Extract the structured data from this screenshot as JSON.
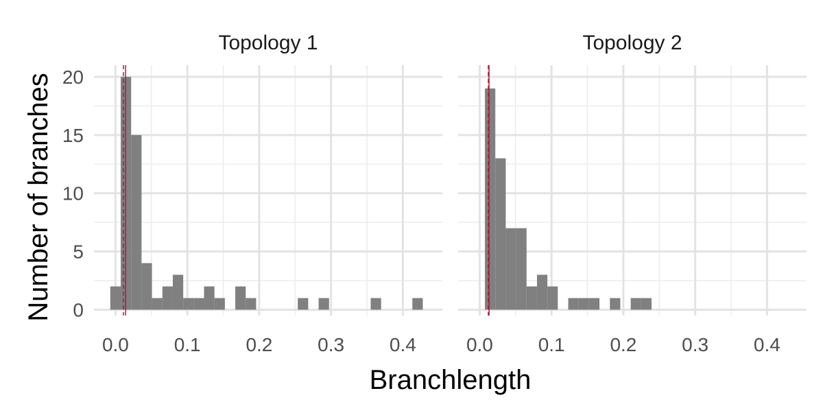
{
  "chart_data": {
    "type": "bar",
    "xlabel": "Branchlength",
    "ylabel": "Number of branches",
    "xlim": [
      -0.03,
      0.455
    ],
    "ylim": [
      -0.5,
      21
    ],
    "x_ticks": [
      "0.0",
      "0.1",
      "0.2",
      "0.3",
      "0.4"
    ],
    "x_tick_values": [
      0.0,
      0.1,
      0.2,
      0.3,
      0.4
    ],
    "y_ticks": [
      "0",
      "5",
      "10",
      "15",
      "20"
    ],
    "y_tick_values": [
      0,
      5,
      10,
      15,
      20
    ],
    "bin_width": 0.0145,
    "bar_color": "#808080",
    "reference_line_color": "#b0173d",
    "grid": true,
    "panels": [
      {
        "title": "Topology 1",
        "bin_centers": [
          0.0,
          0.0145,
          0.029,
          0.0435,
          0.058,
          0.0725,
          0.087,
          0.1015,
          0.116,
          0.1305,
          0.145,
          0.1595,
          0.174,
          0.1885,
          0.203,
          0.2175,
          0.232,
          0.2465,
          0.261,
          0.2755,
          0.29,
          0.3045,
          0.319,
          0.3335,
          0.348,
          0.3625,
          0.377,
          0.3915,
          0.406,
          0.4205
        ],
        "counts": [
          2,
          20,
          15,
          4,
          1,
          2,
          3,
          1,
          1,
          2,
          1,
          0,
          2,
          1,
          0,
          0,
          0,
          0,
          1,
          0,
          1,
          0,
          0,
          0,
          0,
          1,
          0,
          0,
          0,
          1
        ],
        "reference_lines": [
          {
            "x": 0.011,
            "style": "dashed"
          },
          {
            "x": 0.014,
            "style": "solid"
          }
        ]
      },
      {
        "title": "Topology 2",
        "bin_centers": [
          0.0145,
          0.029,
          0.0435,
          0.058,
          0.0725,
          0.087,
          0.1015,
          0.116,
          0.1305,
          0.145,
          0.1595,
          0.174,
          0.1885,
          0.203,
          0.2175,
          0.232
        ],
        "counts": [
          19,
          13,
          7,
          7,
          2,
          3,
          2,
          0,
          1,
          1,
          1,
          0,
          1,
          0,
          1,
          1
        ],
        "reference_lines": [
          {
            "x": 0.012,
            "style": "dashed"
          },
          {
            "x": 0.013,
            "style": "solid"
          }
        ]
      }
    ]
  }
}
